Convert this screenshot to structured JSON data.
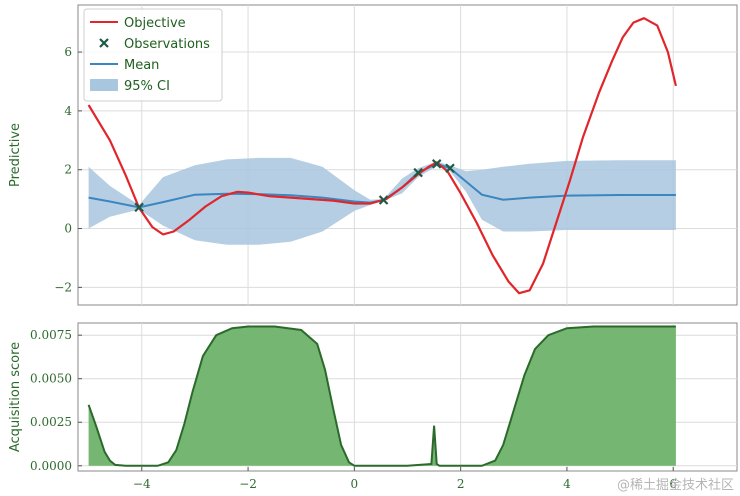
{
  "watermark": "@稀土掘金技术社区",
  "colors": {
    "objective": "#e0262a",
    "observation": "#1e5a45",
    "mean": "#3a86c0",
    "ci": "#a8c6de",
    "acq_fill": "#6db26a",
    "acq_line": "#2b6a2a",
    "grid": "#dcdcdc",
    "tick": "#2d6a2d"
  },
  "chart_data": [
    {
      "type": "line",
      "ylabel": "Predictive",
      "xlim": [
        -5.2,
        7.2
      ],
      "ylim": [
        -2.6,
        7.6
      ],
      "xticks": [
        -4,
        -2,
        0,
        2,
        4,
        6
      ],
      "yticks": [
        -2,
        0,
        2,
        4,
        6
      ],
      "ytick_labels": [
        "−2",
        "0",
        "2",
        "4",
        "6"
      ],
      "grid": true,
      "legend": {
        "placement": "top-left",
        "entries": [
          {
            "label": "Objective",
            "kind": "line",
            "color": "#e0262a"
          },
          {
            "label": "Observations",
            "kind": "marker",
            "color": "#1e5a45"
          },
          {
            "label": "Mean",
            "kind": "line",
            "color": "#3a86c0"
          },
          {
            "label": "95% CI",
            "kind": "patch",
            "color": "#a8c6de"
          }
        ]
      },
      "series": [
        {
          "name": "Objective",
          "x": [
            -5,
            -4.6,
            -4.3,
            -4.05,
            -3.8,
            -3.6,
            -3.4,
            -3.1,
            -2.8,
            -2.5,
            -2.2,
            -2.0,
            -1.6,
            -1.2,
            -0.8,
            -0.4,
            0,
            0.3,
            0.6,
            0.9,
            1.2,
            1.4,
            1.55,
            1.75,
            2.0,
            2.3,
            2.6,
            2.9,
            3.1,
            3.3,
            3.55,
            3.8,
            4.05,
            4.3,
            4.6,
            4.85,
            5.05,
            5.25,
            5.45,
            5.7,
            5.9,
            6.05
          ],
          "y": [
            4.2,
            3.0,
            1.8,
            0.7,
            0.05,
            -0.2,
            -0.1,
            0.3,
            0.75,
            1.1,
            1.25,
            1.22,
            1.1,
            1.05,
            1.0,
            0.95,
            0.85,
            0.85,
            1.0,
            1.4,
            1.85,
            2.1,
            2.25,
            1.95,
            1.2,
            0.2,
            -0.9,
            -1.8,
            -2.2,
            -2.1,
            -1.2,
            0.2,
            1.6,
            3.1,
            4.6,
            5.7,
            6.5,
            7.0,
            7.15,
            6.9,
            6.0,
            4.85
          ]
        },
        {
          "name": "Observations",
          "x": [
            -4.05,
            0.55,
            1.2,
            1.55,
            1.8
          ],
          "y": [
            0.72,
            0.97,
            1.9,
            2.2,
            2.05
          ]
        },
        {
          "name": "Mean",
          "x": [
            -5,
            -4.6,
            -4.05,
            -3.6,
            -3.0,
            -2.4,
            -1.8,
            -1.2,
            -0.6,
            0,
            0.3,
            0.55,
            0.9,
            1.2,
            1.55,
            1.8,
            2.1,
            2.4,
            2.8,
            3.3,
            4.0,
            5.0,
            6.05
          ],
          "y": [
            1.05,
            0.92,
            0.72,
            0.9,
            1.15,
            1.18,
            1.17,
            1.13,
            1.05,
            0.92,
            0.88,
            0.97,
            1.4,
            1.9,
            2.2,
            2.05,
            1.6,
            1.15,
            0.98,
            1.05,
            1.12,
            1.14,
            1.14
          ]
        },
        {
          "name": "95% CI",
          "x": [
            -5,
            -4.6,
            -4.05,
            -3.6,
            -3.0,
            -2.4,
            -1.8,
            -1.2,
            -0.6,
            0,
            0.3,
            0.55,
            0.9,
            1.2,
            1.55,
            1.8,
            2.1,
            2.4,
            2.8,
            3.3,
            4.0,
            5.0,
            6.05
          ],
          "lower": [
            0.0,
            0.4,
            0.65,
            0.1,
            -0.4,
            -0.55,
            -0.55,
            -0.45,
            -0.1,
            0.6,
            0.8,
            0.94,
            1.2,
            1.75,
            2.12,
            1.95,
            1.25,
            0.3,
            -0.1,
            -0.1,
            -0.05,
            -0.05,
            -0.05
          ],
          "upper": [
            2.1,
            1.45,
            0.8,
            1.75,
            2.15,
            2.35,
            2.4,
            2.4,
            2.1,
            1.3,
            0.98,
            1.0,
            1.7,
            2.05,
            2.28,
            2.15,
            1.95,
            2.0,
            2.1,
            2.2,
            2.3,
            2.32,
            2.32
          ]
        }
      ]
    },
    {
      "type": "area",
      "ylabel": "Acquisition score",
      "xlim": [
        -5.2,
        7.2
      ],
      "ylim": [
        -0.0003,
        0.0082
      ],
      "xticks": [
        -4,
        -2,
        0,
        2,
        4,
        6
      ],
      "xtick_labels": [
        "−4",
        "−2",
        "0",
        "2",
        "4",
        "6"
      ],
      "yticks": [
        0,
        0.0025,
        0.005,
        0.0075
      ],
      "ytick_labels": [
        "0.0000",
        "0.0025",
        "0.0050",
        "0.0075"
      ],
      "grid": true,
      "series": [
        {
          "name": "Acquisition score",
          "x": [
            -5,
            -4.85,
            -4.7,
            -4.6,
            -4.5,
            -4.3,
            -4.1,
            -3.7,
            -3.5,
            -3.35,
            -3.2,
            -3.05,
            -2.85,
            -2.6,
            -2.3,
            -2.0,
            -1.5,
            -1.0,
            -0.7,
            -0.55,
            -0.4,
            -0.25,
            -0.1,
            0,
            0.5,
            1.0,
            1.45,
            1.5,
            1.55,
            1.6,
            1.65,
            2.0,
            2.4,
            2.65,
            2.8,
            3.0,
            3.2,
            3.4,
            3.65,
            4.0,
            4.5,
            5.0,
            6.05
          ],
          "y": [
            0.0035,
            0.0022,
            0.0008,
            0.0003,
            5e-05,
            0,
            0,
            0,
            0.0002,
            0.0009,
            0.0024,
            0.0042,
            0.0063,
            0.0075,
            0.0079,
            0.008,
            0.008,
            0.0078,
            0.007,
            0.0055,
            0.0033,
            0.0012,
            0.0002,
            0,
            0,
            0,
            0.0001,
            0.0023,
            0.0001,
            0,
            0,
            0,
            0,
            0.0003,
            0.0012,
            0.0032,
            0.0052,
            0.0067,
            0.0075,
            0.0079,
            0.008,
            0.008,
            0.008
          ]
        }
      ]
    }
  ]
}
